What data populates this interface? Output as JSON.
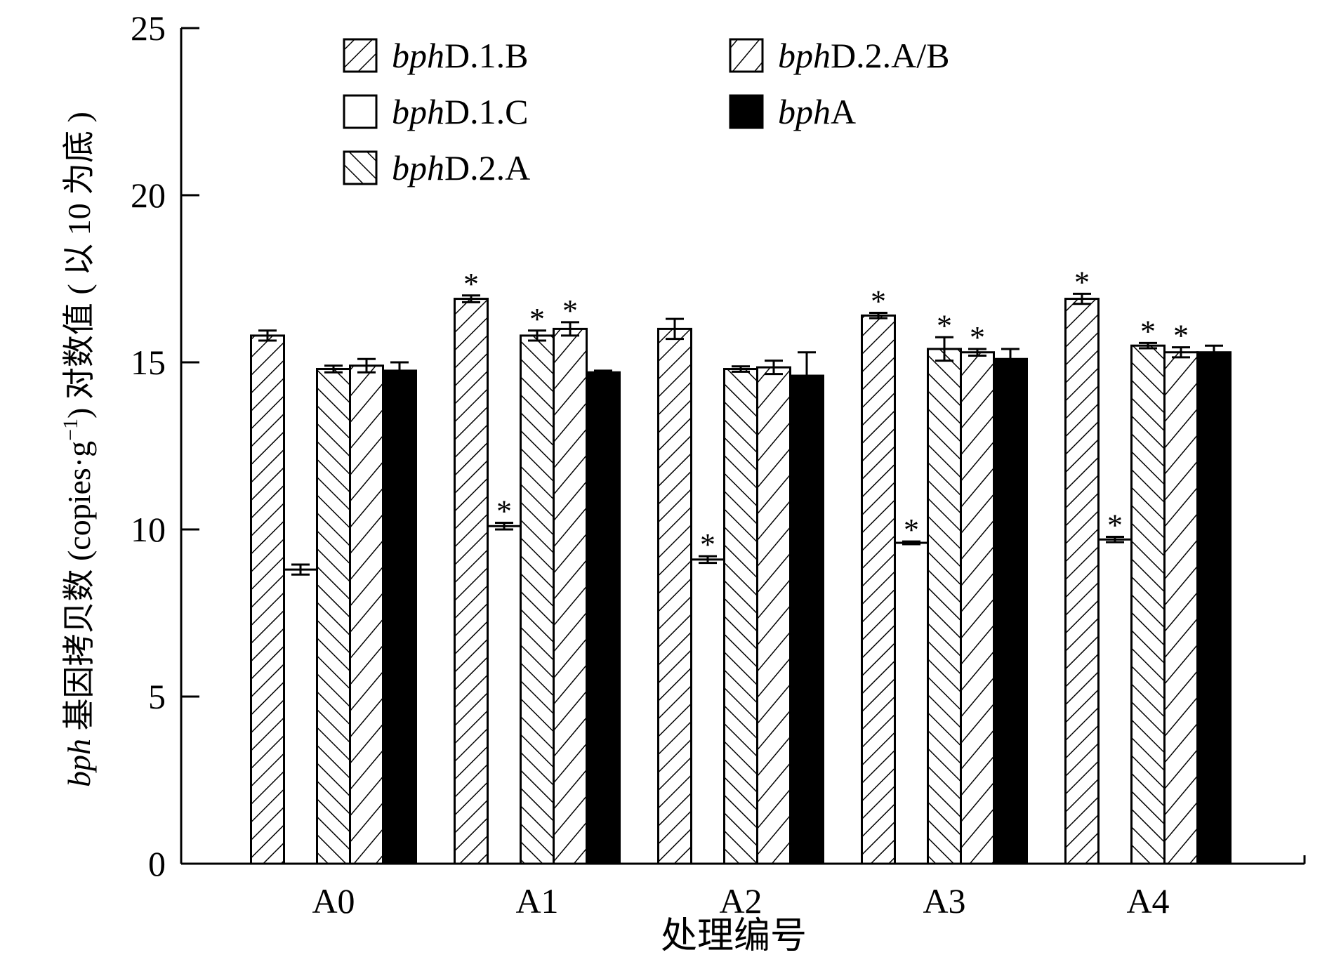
{
  "chart_data": {
    "type": "bar",
    "categories": [
      "A0",
      "A1",
      "A2",
      "A3",
      "A4"
    ],
    "xlabel": "处理编号",
    "ylabel_italic": "bph",
    "ylabel_rest": " 基因拷贝数 (copies·g",
    "ylabel_sup": "−1",
    "ylabel_tail": ") 对数值 ( 以 10 为底 )",
    "ylim": [
      0,
      25
    ],
    "yticks": [
      0,
      5,
      10,
      15,
      20,
      25
    ],
    "legend_position": "top",
    "series": [
      {
        "name": "bphD.1.B",
        "name_italic": "bph",
        "name_rest": "D.1.B",
        "pattern": "diag-right",
        "values": [
          15.8,
          16.9,
          16.0,
          16.4,
          16.9
        ],
        "errors": [
          0.15,
          0.1,
          0.3,
          0.08,
          0.15
        ],
        "significant": [
          false,
          true,
          false,
          true,
          true
        ]
      },
      {
        "name": "bphD.1.C",
        "name_italic": "bph",
        "name_rest": "D.1.C",
        "pattern": "white",
        "values": [
          8.8,
          10.1,
          9.1,
          9.6,
          9.7
        ],
        "errors": [
          0.15,
          0.1,
          0.1,
          0.04,
          0.08
        ],
        "significant": [
          false,
          true,
          true,
          true,
          true
        ]
      },
      {
        "name": "bphD.2.A",
        "name_italic": "bph",
        "name_rest": "D.2.A",
        "pattern": "diag-left",
        "values": [
          14.8,
          15.8,
          14.8,
          15.4,
          15.5
        ],
        "errors": [
          0.1,
          0.15,
          0.08,
          0.35,
          0.08
        ],
        "significant": [
          false,
          true,
          false,
          true,
          true
        ]
      },
      {
        "name": "bphD.2.A/B",
        "name_italic": "bph",
        "name_rest": "D.2.A/B",
        "pattern": "diag-right-wide",
        "values": [
          14.9,
          16.0,
          14.85,
          15.3,
          15.3
        ],
        "errors": [
          0.2,
          0.2,
          0.2,
          0.1,
          0.15
        ],
        "significant": [
          false,
          true,
          false,
          true,
          true
        ]
      },
      {
        "name": "bphA",
        "name_italic": "bph",
        "name_rest": "A",
        "pattern": "solid",
        "values": [
          14.75,
          14.7,
          14.6,
          15.1,
          15.3
        ],
        "errors": [
          0.25,
          0.05,
          0.7,
          0.3,
          0.2
        ],
        "significant": [
          false,
          false,
          false,
          false,
          false
        ]
      }
    ],
    "significance_marker": "*",
    "grid": false
  }
}
